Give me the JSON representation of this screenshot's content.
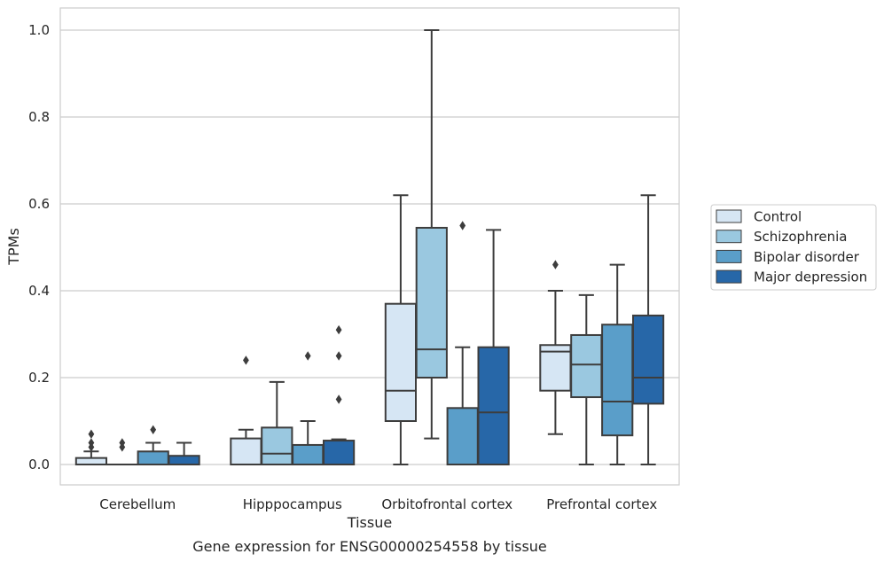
{
  "caption": "Gene expression for ENSG00000254558 by tissue",
  "colors": {
    "Control": "#d6e6f4",
    "Schizophrenia": "#9ac8e0",
    "Bipolar disorder": "#5a9ec9",
    "Major depression": "#2767a8",
    "grid": "#cccccc",
    "frame": "#cccccc",
    "line": "#3d3d3d"
  },
  "chart_data": {
    "type": "box",
    "title": "",
    "xlabel": "Tissue",
    "ylabel": "TPMs",
    "ylim": [
      -0.048,
      1.05
    ],
    "yticks": [
      0.0,
      0.2,
      0.4,
      0.6,
      0.8,
      1.0
    ],
    "ytick_labels": [
      "0.0",
      "0.2",
      "0.4",
      "0.6",
      "0.8",
      "1.0"
    ],
    "grid": true,
    "legend_position": "right",
    "categories": [
      "Cerebellum",
      "Hipppocampus",
      "Orbitofrontal cortex",
      "Prefrontal cortex"
    ],
    "series": [
      {
        "name": "Control",
        "boxes": [
          {
            "min": 0.0,
            "q1": 0.0,
            "median": 0.0,
            "q3": 0.015,
            "max": 0.03,
            "outliers": [
              0.04,
              0.05,
              0.07
            ]
          },
          {
            "min": 0.0,
            "q1": 0.0,
            "median": 0.0,
            "q3": 0.06,
            "max": 0.08,
            "outliers": [
              0.24
            ]
          },
          {
            "min": 0.0,
            "q1": 0.1,
            "median": 0.17,
            "q3": 0.37,
            "max": 0.62,
            "outliers": []
          },
          {
            "min": 0.07,
            "q1": 0.17,
            "median": 0.26,
            "q3": 0.275,
            "max": 0.4,
            "outliers": [
              0.46
            ]
          }
        ]
      },
      {
        "name": "Schizophrenia",
        "boxes": [
          {
            "min": 0.0,
            "q1": 0.0,
            "median": 0.0,
            "q3": 0.0,
            "max": 0.0,
            "outliers": [
              0.04,
              0.05
            ]
          },
          {
            "min": 0.0,
            "q1": 0.0,
            "median": 0.025,
            "q3": 0.085,
            "max": 0.19,
            "outliers": []
          },
          {
            "min": 0.06,
            "q1": 0.2,
            "median": 0.265,
            "q3": 0.545,
            "max": 1.0,
            "outliers": []
          },
          {
            "min": 0.0,
            "q1": 0.155,
            "median": 0.23,
            "q3": 0.298,
            "max": 0.39,
            "outliers": []
          }
        ]
      },
      {
        "name": "Bipolar disorder",
        "boxes": [
          {
            "min": 0.0,
            "q1": 0.0,
            "median": 0.0,
            "q3": 0.03,
            "max": 0.05,
            "outliers": [
              0.08
            ]
          },
          {
            "min": 0.0,
            "q1": 0.0,
            "median": 0.0,
            "q3": 0.045,
            "max": 0.1,
            "outliers": [
              0.25
            ]
          },
          {
            "min": 0.0,
            "q1": 0.0,
            "median": 0.0,
            "q3": 0.13,
            "max": 0.27,
            "outliers": [
              0.55
            ]
          },
          {
            "min": 0.0,
            "q1": 0.067,
            "median": 0.145,
            "q3": 0.322,
            "max": 0.46,
            "outliers": []
          }
        ]
      },
      {
        "name": "Major depression",
        "boxes": [
          {
            "min": 0.0,
            "q1": 0.0,
            "median": 0.0,
            "q3": 0.02,
            "max": 0.05,
            "outliers": []
          },
          {
            "min": 0.0,
            "q1": 0.0,
            "median": 0.0,
            "q3": 0.055,
            "max": 0.058,
            "outliers": [
              0.15,
              0.25,
              0.31
            ]
          },
          {
            "min": 0.0,
            "q1": 0.0,
            "median": 0.12,
            "q3": 0.27,
            "max": 0.54,
            "outliers": []
          },
          {
            "min": 0.0,
            "q1": 0.14,
            "median": 0.2,
            "q3": 0.343,
            "max": 0.62,
            "outliers": []
          }
        ]
      }
    ]
  }
}
